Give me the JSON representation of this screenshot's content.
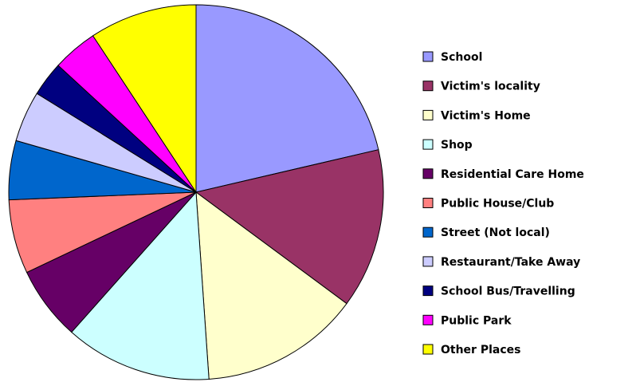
{
  "chart_data": {
    "type": "pie",
    "categories": [
      "School",
      "Victim's locality",
      "Victim's Home",
      "Shop",
      "Residential Care Home",
      "Public House/Club",
      "Street (Not local)",
      "Restaurant/Take Away",
      "School Bus/Travelling",
      "Public Park",
      "Other Places"
    ],
    "values": [
      21.4,
      13.8,
      13.8,
      12.7,
      6.4,
      6.4,
      5.1,
      4.4,
      3.0,
      3.9,
      9.3
    ],
    "colors": [
      "#9999ff",
      "#993366",
      "#ffffcc",
      "#ccffff",
      "#660066",
      "#ff8080",
      "#0066cc",
      "#ccccff",
      "#000080",
      "#ff00ff",
      "#ffff00"
    ],
    "legend": "right"
  }
}
